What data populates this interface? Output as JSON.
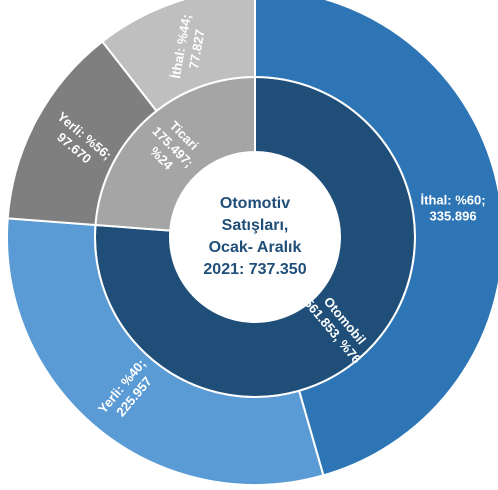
{
  "chart_data": {
    "type": "sunburst",
    "center_lines": [
      "Otomotiv",
      "Satışları,",
      "Ocak- Aralık",
      "2021: 737.350"
    ],
    "rings": [
      {
        "segments": [
          {
            "label_lines": [
              "Otomobil",
              "561.853, %76"
            ],
            "value": 561853,
            "color": "#1f4e79"
          },
          {
            "label_lines": [
              "Ticari",
              "175.497;",
              "%24"
            ],
            "value": 175497,
            "color": "#a5a5a5"
          }
        ]
      },
      {
        "segments": [
          {
            "label_lines": [
              "İthal: %60;",
              "335.896"
            ],
            "value": 335896,
            "color": "#2e75b6"
          },
          {
            "label_lines": [
              "Yerli: %40;",
              "225.957"
            ],
            "value": 225957,
            "color": "#5b9bd5"
          },
          {
            "label_lines": [
              "Yerli: %56;",
              "97.670"
            ],
            "value": 97670,
            "color": "#7f7f7f"
          },
          {
            "label_lines": [
              "İthal: %44;",
              "77.827"
            ],
            "value": 77827,
            "color": "#bfbfbf"
          }
        ]
      }
    ]
  }
}
